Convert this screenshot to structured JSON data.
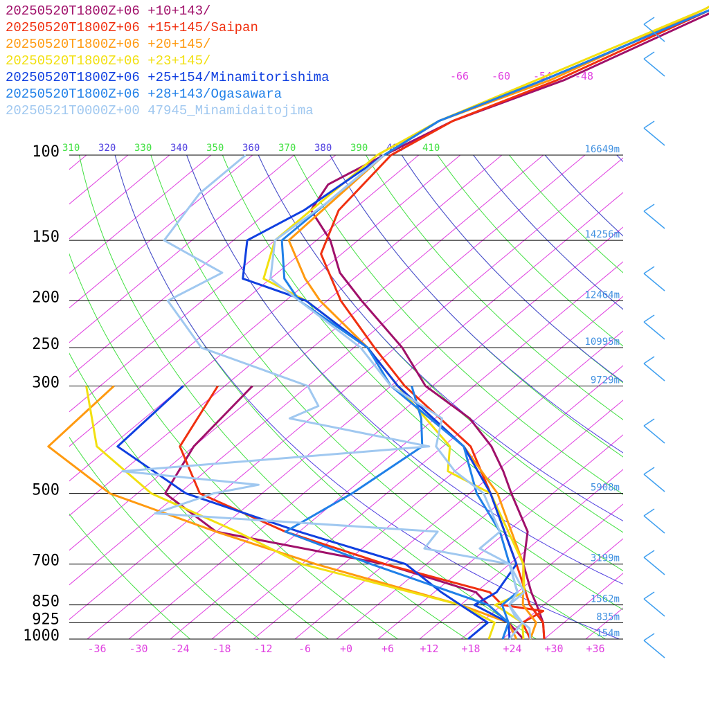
{
  "legend": [
    {
      "label": "20250520T1800Z+06 +10+143/",
      "color": "#a0106a"
    },
    {
      "label": "20250520T1800Z+06 +15+145/Saipan",
      "color": "#f03010"
    },
    {
      "label": "20250520T1800Z+06 +20+145/",
      "color": "#ff9a10"
    },
    {
      "label": "20250520T1800Z+06 +23+145/",
      "color": "#f2e010"
    },
    {
      "label": "20250520T1800Z+06 +25+154/Minamitorishima",
      "color": "#1040e0"
    },
    {
      "label": "20250520T1800Z+06 +28+143/Ogasawara",
      "color": "#2080e8"
    },
    {
      "label": "20250521T0000Z+00 47945_Minamidaitojima",
      "color": "#a0c8f0"
    }
  ],
  "chart_data": {
    "type": "line",
    "title": "",
    "xlabel": "",
    "ylabel": "",
    "x_tick_labels": [
      "-36",
      "-30",
      "-24",
      "-18",
      "-12",
      "-6",
      "+0",
      "+6",
      "+12",
      "+18",
      "+24",
      "+30",
      "+36"
    ],
    "x_ticks": [
      -36,
      -30,
      -24,
      -18,
      -12,
      -6,
      0,
      6,
      12,
      18,
      24,
      30,
      36
    ],
    "pressure_levels": [
      {
        "p": 100,
        "label": "100",
        "height": "16649m"
      },
      {
        "p": 150,
        "label": "150",
        "height": "14256m"
      },
      {
        "p": 200,
        "label": "200",
        "height": "12464m"
      },
      {
        "p": 250,
        "label": "250",
        "height": "10995m"
      },
      {
        "p": 300,
        "label": "300",
        "height": "9729m"
      },
      {
        "p": 500,
        "label": "500",
        "height": "5908m"
      },
      {
        "p": 700,
        "label": "700",
        "height": "3199m"
      },
      {
        "p": 850,
        "label": "850",
        "height": "1562m"
      },
      {
        "p": 925,
        "label": "925",
        "height": "835m"
      },
      {
        "p": 1000,
        "label": "1000",
        "height": "154m"
      }
    ],
    "theta_labels": [
      "310",
      "320",
      "330",
      "340",
      "350",
      "360",
      "370",
      "380",
      "390",
      "400",
      "410"
    ],
    "isotherm_top_labels": [
      "-66",
      "-60",
      "-54",
      "-48"
    ],
    "colors": {
      "isotherm": "#e040e0",
      "dry_adiabat": "#40e040",
      "moist_adiabat": "#5040e0",
      "isobar": "#000000",
      "height": "#4090e0",
      "wind": "#40a0f0"
    },
    "series": [
      {
        "name": "20250520T1800Z+06 +10+143/",
        "color": "#a0106a",
        "temperature": [
          [
            30,
            -46
          ],
          [
            50,
            -56
          ],
          [
            70,
            -66
          ],
          [
            85,
            -75
          ],
          [
            100,
            -79
          ],
          [
            115,
            -82
          ],
          [
            130,
            -80
          ],
          [
            150,
            -72
          ],
          [
            175,
            -65
          ],
          [
            200,
            -57
          ],
          [
            250,
            -43
          ],
          [
            300,
            -33
          ],
          [
            350,
            -21
          ],
          [
            400,
            -13
          ],
          [
            450,
            -7
          ],
          [
            500,
            -2
          ],
          [
            600,
            7
          ],
          [
            700,
            12
          ],
          [
            800,
            18
          ],
          [
            850,
            21
          ],
          [
            925,
            25
          ],
          [
            1000,
            28
          ]
        ],
        "dewpoint": [
          [
            300,
            -58
          ],
          [
            400,
            -56
          ],
          [
            500,
            -52
          ],
          [
            600,
            -38
          ],
          [
            700,
            -8
          ],
          [
            800,
            10
          ],
          [
            850,
            14
          ],
          [
            925,
            20
          ],
          [
            1000,
            25
          ]
        ]
      },
      {
        "name": "20250520T1800Z+06 +15+145/Saipan",
        "color": "#f03010",
        "temperature": [
          [
            30,
            -48
          ],
          [
            50,
            -57
          ],
          [
            70,
            -67
          ],
          [
            85,
            -75
          ],
          [
            100,
            -78
          ],
          [
            130,
            -76
          ],
          [
            160,
            -71
          ],
          [
            200,
            -60
          ],
          [
            250,
            -47
          ],
          [
            300,
            -36
          ],
          [
            400,
            -16
          ],
          [
            500,
            -5
          ],
          [
            700,
            11
          ],
          [
            850,
            20
          ],
          [
            925,
            25
          ],
          [
            1000,
            28
          ]
        ],
        "dewpoint": [
          [
            300,
            -63
          ],
          [
            400,
            -58
          ],
          [
            500,
            -47
          ],
          [
            600,
            -28
          ],
          [
            700,
            -8
          ],
          [
            800,
            12
          ],
          [
            850,
            16
          ],
          [
            875,
            23
          ],
          [
            925,
            22
          ],
          [
            1000,
            26
          ]
        ]
      },
      {
        "name": "20250520T1800Z+06 +20+145/",
        "color": "#ff9a10",
        "temperature": [
          [
            30,
            -48
          ],
          [
            50,
            -58
          ],
          [
            70,
            -68
          ],
          [
            85,
            -77
          ],
          [
            100,
            -79
          ],
          [
            150,
            -78
          ],
          [
            180,
            -69
          ],
          [
            200,
            -63
          ],
          [
            250,
            -48
          ],
          [
            300,
            -37
          ],
          [
            400,
            -17
          ],
          [
            500,
            -4
          ],
          [
            700,
            12
          ],
          [
            850,
            19
          ],
          [
            925,
            24
          ],
          [
            1000,
            26
          ]
        ],
        "dewpoint": [
          [
            300,
            -78
          ],
          [
            400,
            -77
          ],
          [
            500,
            -60
          ],
          [
            600,
            -38
          ],
          [
            700,
            -18
          ],
          [
            850,
            10
          ],
          [
            925,
            20
          ],
          [
            1000,
            24
          ]
        ]
      },
      {
        "name": "20250520T1800Z+06 +23+145/",
        "color": "#f2e010",
        "temperature": [
          [
            30,
            -48
          ],
          [
            50,
            -58
          ],
          [
            70,
            -70
          ],
          [
            85,
            -77
          ],
          [
            100,
            -80
          ],
          [
            150,
            -80
          ],
          [
            180,
            -75
          ],
          [
            200,
            -65
          ],
          [
            250,
            -48
          ],
          [
            300,
            -37
          ],
          [
            400,
            -19
          ],
          [
            450,
            -15
          ],
          [
            500,
            -5
          ],
          [
            700,
            12
          ],
          [
            800,
            17
          ],
          [
            850,
            15
          ],
          [
            925,
            22
          ],
          [
            1000,
            25
          ]
        ],
        "dewpoint": [
          [
            300,
            -82
          ],
          [
            400,
            -70
          ],
          [
            500,
            -54
          ],
          [
            600,
            -35
          ],
          [
            700,
            -20
          ],
          [
            850,
            10
          ],
          [
            925,
            18
          ],
          [
            1000,
            20
          ]
        ]
      },
      {
        "name": "20250520T1800Z+06 +25+154/Minamitorishima",
        "color": "#1040e0",
        "temperature": [
          [
            30,
            -46
          ],
          [
            50,
            -57
          ],
          [
            70,
            -69
          ],
          [
            85,
            -77
          ],
          [
            100,
            -79
          ],
          [
            130,
            -81
          ],
          [
            150,
            -84
          ],
          [
            180,
            -78
          ],
          [
            200,
            -65
          ],
          [
            250,
            -48
          ],
          [
            300,
            -37
          ],
          [
            400,
            -17
          ],
          [
            500,
            -5
          ],
          [
            700,
            11
          ],
          [
            800,
            13
          ],
          [
            850,
            12
          ],
          [
            925,
            20
          ],
          [
            1000,
            23
          ]
        ],
        "dewpoint": [
          [
            300,
            -68
          ],
          [
            400,
            -67
          ],
          [
            500,
            -49
          ],
          [
            600,
            -26
          ],
          [
            700,
            -5
          ],
          [
            800,
            5
          ],
          [
            850,
            10
          ],
          [
            925,
            17
          ],
          [
            1000,
            17
          ]
        ]
      },
      {
        "name": "20250520T1800Z+06 +28+143/Ogasawara",
        "color": "#2080e8",
        "temperature": [
          [
            30,
            -47
          ],
          [
            50,
            -57
          ],
          [
            70,
            -69
          ],
          [
            85,
            -77
          ],
          [
            100,
            -79
          ],
          [
            130,
            -79
          ],
          [
            150,
            -79
          ],
          [
            180,
            -72
          ],
          [
            200,
            -66
          ],
          [
            250,
            -48
          ],
          [
            300,
            -38
          ],
          [
            400,
            -17
          ],
          [
            500,
            -7
          ],
          [
            600,
            3
          ],
          [
            700,
            10
          ],
          [
            800,
            16
          ],
          [
            850,
            16
          ],
          [
            925,
            20
          ],
          [
            1000,
            22
          ]
        ],
        "dewpoint": [
          [
            300,
            -35
          ],
          [
            350,
            -28
          ],
          [
            400,
            -23
          ],
          [
            500,
            -25
          ],
          [
            600,
            -28
          ],
          [
            700,
            -10
          ],
          [
            850,
            14
          ],
          [
            925,
            20
          ],
          [
            1000,
            22
          ]
        ]
      },
      {
        "name": "20250521T0000Z+00 47945_Minamidaitojima",
        "color": "#a0c8f0",
        "temperature": [
          [
            100,
            -79
          ],
          [
            125,
            -79
          ],
          [
            150,
            -80
          ],
          [
            180,
            -74
          ],
          [
            200,
            -66
          ],
          [
            250,
            -49
          ],
          [
            300,
            -38
          ],
          [
            350,
            -25
          ],
          [
            400,
            -21
          ],
          [
            450,
            -14
          ],
          [
            500,
            -6
          ],
          [
            600,
            3
          ],
          [
            650,
            3
          ],
          [
            700,
            10
          ],
          [
            800,
            16
          ],
          [
            850,
            17
          ],
          [
            900,
            20
          ],
          [
            950,
            24
          ],
          [
            1000,
            26
          ]
        ],
        "dewpoint": [
          [
            100,
            -99
          ],
          [
            120,
            -99
          ],
          [
            150,
            -96
          ],
          [
            175,
            -82
          ],
          [
            200,
            -85
          ],
          [
            250,
            -72
          ],
          [
            300,
            -50
          ],
          [
            330,
            -45
          ],
          [
            350,
            -47
          ],
          [
            400,
            -22
          ],
          [
            450,
            -62
          ],
          [
            480,
            -40
          ],
          [
            500,
            -45
          ],
          [
            550,
            -50
          ],
          [
            600,
            -6
          ],
          [
            650,
            -5
          ],
          [
            700,
            10
          ],
          [
            800,
            17
          ],
          [
            850,
            17
          ],
          [
            925,
            22
          ],
          [
            1000,
            23
          ]
        ]
      }
    ]
  }
}
